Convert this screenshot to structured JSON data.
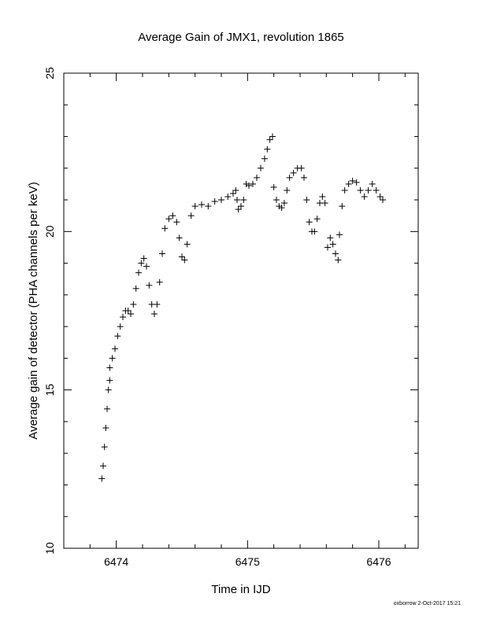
{
  "chart_data": {
    "type": "scatter",
    "title": "Average Gain of JMX1, revolution 1865",
    "xlabel": "Time in IJD",
    "ylabel": "Average gain of detector (PHA channels per keV)",
    "xlim": [
      6473.6,
      6476.3
    ],
    "ylim": [
      10,
      25
    ],
    "xticks": [
      6474,
      6475,
      6476
    ],
    "yticks": [
      10,
      15,
      20,
      25
    ],
    "x_minor_step": 0.2,
    "y_minor_step": 1,
    "grid": false,
    "marker": "plus",
    "marker_color": "#000000",
    "series": [
      {
        "points": [
          [
            6473.89,
            12.2
          ],
          [
            6473.9,
            12.6
          ],
          [
            6473.91,
            13.2
          ],
          [
            6473.92,
            13.8
          ],
          [
            6473.93,
            14.4
          ],
          [
            6473.94,
            15.0
          ],
          [
            6473.95,
            15.3
          ],
          [
            6473.95,
            15.7
          ],
          [
            6473.97,
            16.0
          ],
          [
            6473.99,
            16.3
          ],
          [
            6474.01,
            16.7
          ],
          [
            6474.03,
            17.0
          ],
          [
            6474.05,
            17.3
          ],
          [
            6474.07,
            17.5
          ],
          [
            6474.09,
            17.5
          ],
          [
            6474.11,
            17.4
          ],
          [
            6474.13,
            17.7
          ],
          [
            6474.15,
            18.2
          ],
          [
            6474.17,
            18.7
          ],
          [
            6474.19,
            19.0
          ],
          [
            6474.21,
            19.15
          ],
          [
            6474.23,
            18.9
          ],
          [
            6474.25,
            18.3
          ],
          [
            6474.27,
            17.7
          ],
          [
            6474.29,
            17.4
          ],
          [
            6474.31,
            17.7
          ],
          [
            6474.33,
            18.4
          ],
          [
            6474.35,
            19.3
          ],
          [
            6474.37,
            20.1
          ],
          [
            6474.4,
            20.4
          ],
          [
            6474.43,
            20.5
          ],
          [
            6474.46,
            20.3
          ],
          [
            6474.48,
            19.8
          ],
          [
            6474.5,
            19.2
          ],
          [
            6474.52,
            19.1
          ],
          [
            6474.54,
            19.6
          ],
          [
            6474.57,
            20.5
          ],
          [
            6474.6,
            20.8
          ],
          [
            6474.65,
            20.85
          ],
          [
            6474.7,
            20.8
          ],
          [
            6474.75,
            20.95
          ],
          [
            6474.8,
            21.0
          ],
          [
            6474.85,
            21.1
          ],
          [
            6474.89,
            21.2
          ],
          [
            6474.91,
            21.3
          ],
          [
            6474.92,
            21.0
          ],
          [
            6474.93,
            20.7
          ],
          [
            6474.95,
            20.8
          ],
          [
            6474.97,
            21.0
          ],
          [
            6474.99,
            21.5
          ],
          [
            6475.01,
            21.45
          ],
          [
            6475.04,
            21.5
          ],
          [
            6475.07,
            21.7
          ],
          [
            6475.1,
            22.0
          ],
          [
            6475.13,
            22.3
          ],
          [
            6475.15,
            22.6
          ],
          [
            6475.17,
            22.9
          ],
          [
            6475.19,
            23.0
          ],
          [
            6475.2,
            21.4
          ],
          [
            6475.22,
            21.0
          ],
          [
            6475.24,
            20.8
          ],
          [
            6475.26,
            20.75
          ],
          [
            6475.28,
            20.9
          ],
          [
            6475.3,
            21.3
          ],
          [
            6475.32,
            21.7
          ],
          [
            6475.35,
            21.85
          ],
          [
            6475.38,
            22.0
          ],
          [
            6475.41,
            22.0
          ],
          [
            6475.43,
            21.7
          ],
          [
            6475.45,
            21.0
          ],
          [
            6475.47,
            20.3
          ],
          [
            6475.49,
            20.0
          ],
          [
            6475.51,
            20.0
          ],
          [
            6475.53,
            20.4
          ],
          [
            6475.55,
            20.9
          ],
          [
            6475.57,
            21.1
          ],
          [
            6475.59,
            20.9
          ],
          [
            6475.61,
            19.5
          ],
          [
            6475.63,
            19.8
          ],
          [
            6475.65,
            19.6
          ],
          [
            6475.67,
            19.3
          ],
          [
            6475.69,
            19.1
          ],
          [
            6475.7,
            19.9
          ],
          [
            6475.72,
            20.8
          ],
          [
            6475.74,
            21.3
          ],
          [
            6475.77,
            21.5
          ],
          [
            6475.8,
            21.6
          ],
          [
            6475.83,
            21.55
          ],
          [
            6475.86,
            21.3
          ],
          [
            6475.89,
            21.1
          ],
          [
            6475.92,
            21.3
          ],
          [
            6475.95,
            21.5
          ],
          [
            6475.98,
            21.3
          ],
          [
            6476.01,
            21.1
          ],
          [
            6476.03,
            21.0
          ]
        ]
      }
    ]
  },
  "footer": "oxborrow  2-Oct-2017 15:21"
}
